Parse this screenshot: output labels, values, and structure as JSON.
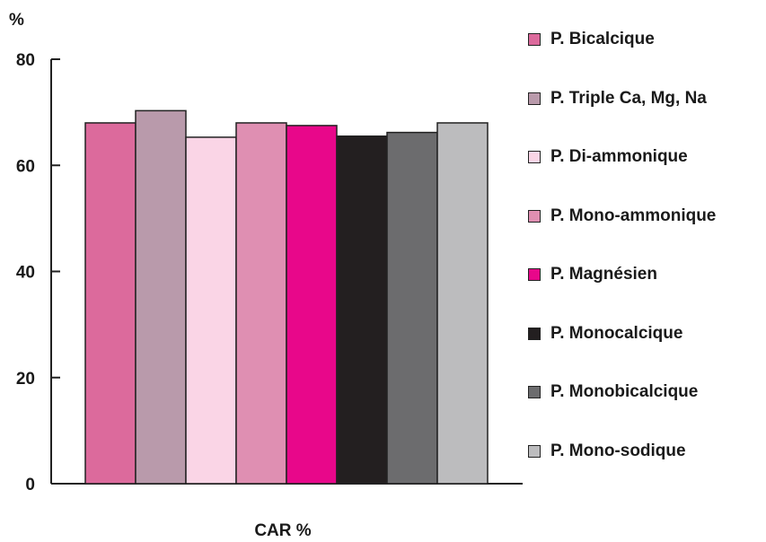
{
  "chart_data": {
    "type": "bar",
    "ylabel": "%",
    "xlabel": "CAR %",
    "ylim": [
      0,
      80
    ],
    "yticks": [
      "0",
      "20",
      "40",
      "60",
      "80"
    ],
    "grid": false,
    "legend_position": "right",
    "series": [
      {
        "name": "P. Bicalcique",
        "value": 68,
        "color": "#dc6a9c"
      },
      {
        "name": "P. Triple Ca, Mg, Na",
        "value": 70.3,
        "color": "#b99aab"
      },
      {
        "name": "P. Di-ammonique",
        "value": 65.3,
        "color": "#fad5e6"
      },
      {
        "name": "P. Mono-ammonique",
        "value": 68,
        "color": "#df8fb2"
      },
      {
        "name": "P. Magnésien",
        "value": 67.5,
        "color": "#e8078a"
      },
      {
        "name": "P. Monocalcique",
        "value": 65.5,
        "color": "#231f20"
      },
      {
        "name": "P. Monobicalcique",
        "value": 66.2,
        "color": "#6c6c6e"
      },
      {
        "name": "P. Mono-sodique",
        "value": 68,
        "color": "#bcbcbe"
      }
    ]
  }
}
